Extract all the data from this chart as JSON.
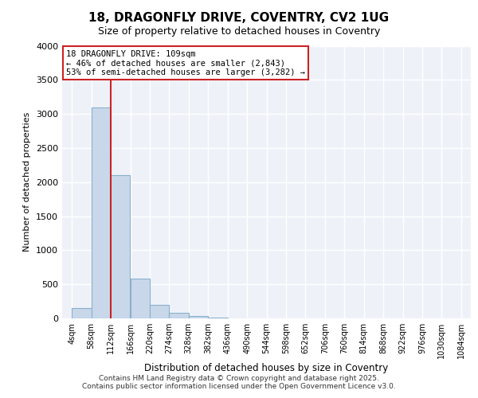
{
  "title": "18, DRAGONFLY DRIVE, COVENTRY, CV2 1UG",
  "subtitle": "Size of property relative to detached houses in Coventry",
  "xlabel": "Distribution of detached houses by size in Coventry",
  "ylabel": "Number of detached properties",
  "bar_values": [
    150,
    3100,
    2100,
    580,
    200,
    80,
    30,
    10,
    3,
    0,
    0,
    0,
    0,
    0,
    0,
    0,
    0,
    0,
    0,
    0
  ],
  "bin_edges": [
    4,
    58,
    112,
    166,
    220,
    274,
    328,
    382,
    436,
    490,
    544,
    598,
    652,
    706,
    760,
    814,
    868,
    922,
    976,
    1030,
    1084
  ],
  "bar_color": "#c8d8ea",
  "bar_edge_color": "#8ab0cc",
  "property_vline_x": 112,
  "property_label": "18 DRAGONFLY DRIVE: 109sqm",
  "annotation_line1": "← 46% of detached houses are smaller (2,843)",
  "annotation_line2": "53% of semi-detached houses are larger (3,282) →",
  "vline_color": "#cc2222",
  "annotation_box_facecolor": "#ffffff",
  "annotation_box_edgecolor": "#cc2222",
  "ylim": [
    0,
    4000
  ],
  "yticks": [
    0,
    500,
    1000,
    1500,
    2000,
    2500,
    3000,
    3500,
    4000
  ],
  "footer_line1": "Contains HM Land Registry data © Crown copyright and database right 2025.",
  "footer_line2": "Contains public sector information licensed under the Open Government Licence v3.0.",
  "plot_bg_color": "#eef2f8",
  "fig_bg_color": "#ffffff",
  "grid_color": "#ffffff",
  "title_fontsize": 11,
  "subtitle_fontsize": 9,
  "ylabel_fontsize": 8,
  "xlabel_fontsize": 8.5,
  "tick_fontsize": 7,
  "annotation_fontsize": 7.5,
  "footer_fontsize": 6.5
}
